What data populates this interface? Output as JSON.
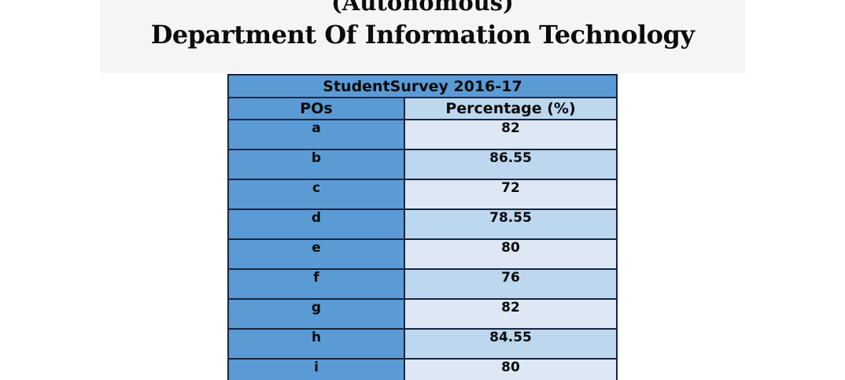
{
  "header": {
    "line1": "(Autonomous)",
    "line2": "Department Of Information Technology"
  },
  "table": {
    "title": "StudentSurvey 2016-17",
    "columns": [
      "POs",
      "Percentage (%)"
    ],
    "rows": [
      {
        "po": "a",
        "percentage": "82"
      },
      {
        "po": "b",
        "percentage": "86.55"
      },
      {
        "po": "c",
        "percentage": "72"
      },
      {
        "po": "d",
        "percentage": "78.55"
      },
      {
        "po": "e",
        "percentage": "80"
      },
      {
        "po": "f",
        "percentage": "76"
      },
      {
        "po": "g",
        "percentage": "82"
      },
      {
        "po": "h",
        "percentage": "84.55"
      },
      {
        "po": "i",
        "percentage": "80"
      }
    ],
    "colors": {
      "header_blue": "#5b9bd5",
      "row_light": "#dde8f4",
      "row_medium": "#bdd7ee",
      "border": "#17253f",
      "band_gray": "#f5f5f5"
    }
  }
}
